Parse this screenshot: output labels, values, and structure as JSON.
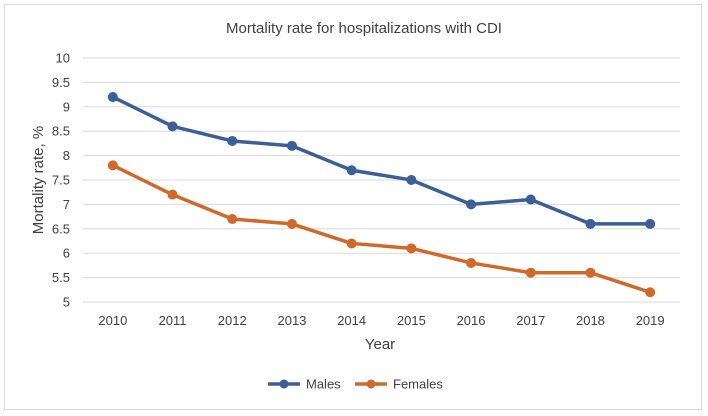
{
  "chart_data": {
    "type": "line",
    "title": "Mortality rate for hospitalizations with CDI",
    "xlabel": "Year",
    "ylabel": "Mortality rate, %",
    "x": [
      "2010",
      "2011",
      "2012",
      "2013",
      "2014",
      "2015",
      "2016",
      "2017",
      "2018",
      "2019"
    ],
    "ylim": [
      5,
      10
    ],
    "yticks": [
      "5",
      "5.5",
      "6",
      "6.5",
      "7",
      "7.5",
      "8",
      "8.5",
      "9",
      "9.5",
      "10"
    ],
    "grid": true,
    "legend_position": "bottom",
    "series": [
      {
        "name": "Males",
        "color": "#3b5f96",
        "values": [
          9.2,
          8.6,
          8.3,
          8.2,
          7.7,
          7.5,
          7.0,
          7.1,
          6.6,
          6.6
        ]
      },
      {
        "name": "Females",
        "color": "#d1692a",
        "values": [
          7.8,
          7.2,
          6.7,
          6.6,
          6.2,
          6.1,
          5.8,
          5.6,
          5.6,
          5.2
        ]
      }
    ]
  }
}
